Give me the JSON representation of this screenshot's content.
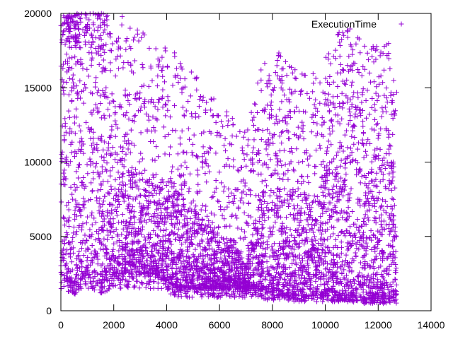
{
  "chart_data": {
    "type": "scatter",
    "title": "",
    "xlabel": "",
    "ylabel": "",
    "xlim": [
      0,
      14000
    ],
    "ylim": [
      0,
      20000
    ],
    "xticks": [
      0,
      2000,
      4000,
      6000,
      8000,
      10000,
      12000,
      14000
    ],
    "yticks": [
      0,
      5000,
      10000,
      15000,
      20000
    ],
    "xtick_labels": [
      "0",
      "2000",
      "4000",
      "6000",
      "8000",
      "10000",
      "12000",
      "14000"
    ],
    "ytick_labels": [
      "0",
      "5000",
      "10000",
      "15000",
      "20000"
    ],
    "grid": false,
    "legend_position": "top-right",
    "marker": "plus",
    "x_domain": [
      0,
      12700
    ],
    "series": [
      {
        "name": "ExecutionTime",
        "color": "#9400d3",
        "band_x": [
          0,
          500,
          1000,
          1500,
          2000,
          2500,
          3000,
          3500,
          4000,
          4500,
          5000,
          5500,
          6000,
          6500,
          7000,
          7500,
          8000,
          8500,
          9000,
          9500,
          10000,
          10500,
          11000,
          11500,
          12000,
          12500
        ],
        "dense_low": [
          2500,
          1800,
          2500,
          1800,
          2500,
          2500,
          2500,
          2500,
          2000,
          1500,
          1500,
          1500,
          1500,
          1500,
          1500,
          1500,
          1000,
          1000,
          1000,
          1000,
          1000,
          1000,
          1000,
          800,
          800,
          800
        ],
        "dense_high": [
          18000,
          18000,
          18000,
          17000,
          12000,
          10000,
          9000,
          8500,
          9000,
          8000,
          7000,
          6000,
          5000,
          5000,
          3000,
          8000,
          9000,
          9000,
          8000,
          8000,
          9000,
          11000,
          12000,
          9000,
          10000,
          10000
        ],
        "sparse_high": [
          20000,
          20000,
          20000,
          20000,
          20000,
          20000,
          19000,
          18000,
          18000,
          17000,
          16000,
          15000,
          14000,
          14000,
          12000,
          17000,
          18000,
          17000,
          16000,
          16000,
          17000,
          19000,
          19000,
          18000,
          18000,
          18000
        ]
      }
    ]
  }
}
